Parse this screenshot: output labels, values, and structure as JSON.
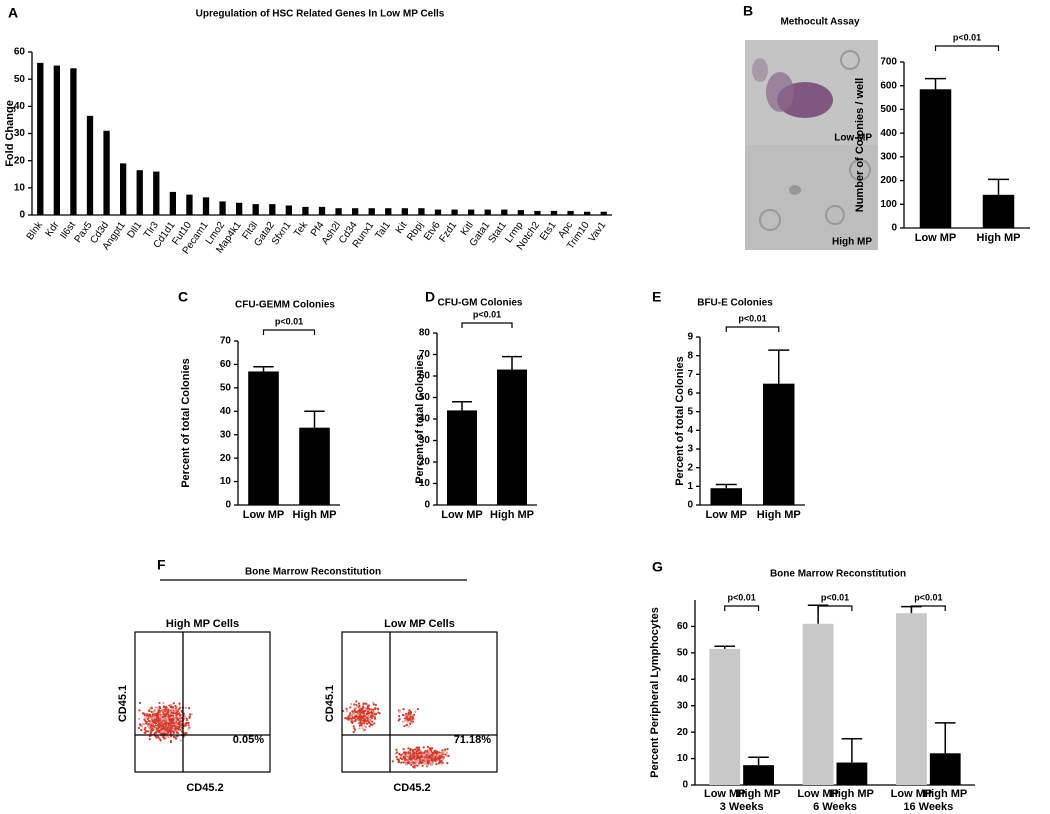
{
  "chart_data": [
    {
      "panel": "A",
      "type": "bar",
      "title": "Upregulation of HSC Related Genes In Low MP Cells",
      "ylabel": "Fold Change",
      "categories": [
        "Blnk",
        "Kdr",
        "Il6st",
        "Pax5",
        "Cd3d",
        "Angpt1",
        "Dll1",
        "Tlr3",
        "Cd1d1",
        "Fut10",
        "Pecam1",
        "Lmo2",
        "Map4k1",
        "Flt3l",
        "Gata2",
        "Sfxn1",
        "Tek",
        "Pf4",
        "Ash2l",
        "Cd34",
        "Runx1",
        "Tal1",
        "Kit",
        "Rbpj",
        "Etv6",
        "Fzd1",
        "Kitl",
        "Gata1",
        "Stat1",
        "Lrmp",
        "Notch2",
        "Ets1",
        "Apc",
        "Trim10",
        "Vav1"
      ],
      "values": [
        56,
        55,
        54,
        36.5,
        31,
        19,
        16.5,
        16,
        8.5,
        7.5,
        6.5,
        5,
        4.5,
        4,
        4,
        3.5,
        3,
        3,
        2.5,
        2.5,
        2.5,
        2.5,
        2.5,
        2.5,
        2,
        2,
        2,
        2,
        2,
        1.8,
        1.5,
        1.5,
        1.5,
        1.2,
        1.2
      ],
      "color": "#000000",
      "ylim": [
        0,
        60
      ],
      "yticks": [
        0,
        10,
        20,
        30,
        40,
        50,
        60
      ]
    },
    {
      "panel": "B",
      "type": "bar",
      "title": "Methocult Assay",
      "ylabel": "Number of Colonies / well",
      "categories": [
        "Low MP",
        "High MP"
      ],
      "values": [
        585,
        140
      ],
      "errors": [
        45,
        65
      ],
      "color": "#000000",
      "ylim": [
        0,
        700
      ],
      "yticks": [
        0,
        100,
        200,
        300,
        400,
        500,
        600,
        700
      ],
      "annotation": "p<0.01"
    },
    {
      "panel": "C",
      "type": "bar",
      "title": "CFU-GEMM Colonies",
      "ylabel": "Percent of total Colonies",
      "categories": [
        "Low MP",
        "High MP"
      ],
      "values": [
        57,
        33
      ],
      "errors": [
        2,
        7
      ],
      "color": "#000000",
      "ylim": [
        0,
        70
      ],
      "yticks": [
        0,
        10,
        20,
        30,
        40,
        50,
        60,
        70
      ],
      "annotation": "p<0.01"
    },
    {
      "panel": "D",
      "type": "bar",
      "title": "CFU-GM Colonies",
      "ylabel": "Percent of total Colonies",
      "categories": [
        "Low MP",
        "High MP"
      ],
      "values": [
        44,
        63
      ],
      "errors": [
        4,
        6
      ],
      "color": "#000000",
      "ylim": [
        0,
        80
      ],
      "yticks": [
        0,
        10,
        20,
        30,
        40,
        50,
        60,
        70,
        80
      ],
      "annotation": "p<0.01"
    },
    {
      "panel": "E",
      "type": "bar",
      "title": "BFU-E Colonies",
      "ylabel": "Percent of total Colonies",
      "categories": [
        "Low MP",
        "High MP"
      ],
      "values": [
        0.9,
        6.5
      ],
      "errors": [
        0.2,
        1.8
      ],
      "color": "#000000",
      "ylim": [
        0,
        9
      ],
      "yticks": [
        0,
        1,
        2,
        3,
        4,
        5,
        6,
        7,
        8,
        9
      ],
      "annotation": "p<0.01"
    },
    {
      "panel": "F",
      "type": "flow",
      "title": "Bone Marrow Reconstitution",
      "plots": [
        {
          "title": "High MP Cells",
          "xlabel": "CD45.2",
          "ylabel": "CD45.1",
          "quadrant_label": "0.05%"
        },
        {
          "title": "Low MP Cells",
          "xlabel": "CD45.2",
          "ylabel": "CD45.1",
          "quadrant_label": "71.18%"
        }
      ]
    },
    {
      "panel": "G",
      "type": "grouped_bar",
      "title": "Bone Marrow Reconstitution",
      "ylabel": "Percent Peripheral Lymphocytes",
      "categories": [
        "3 Weeks",
        "6 Weeks",
        "16 Weeks"
      ],
      "series": [
        {
          "name": "Low MP",
          "color": "#c8c8c8",
          "values": [
            51.5,
            61,
            65
          ],
          "errors": [
            1,
            7,
            2.5
          ]
        },
        {
          "name": "High MP",
          "color": "#000000",
          "values": [
            7.5,
            8.5,
            12
          ],
          "errors": [
            3,
            9,
            11.5
          ]
        }
      ],
      "ylim": [
        0,
        70
      ],
      "yticks": [
        0,
        10,
        20,
        30,
        40,
        50,
        60
      ],
      "annotation": "p<0.01"
    }
  ]
}
